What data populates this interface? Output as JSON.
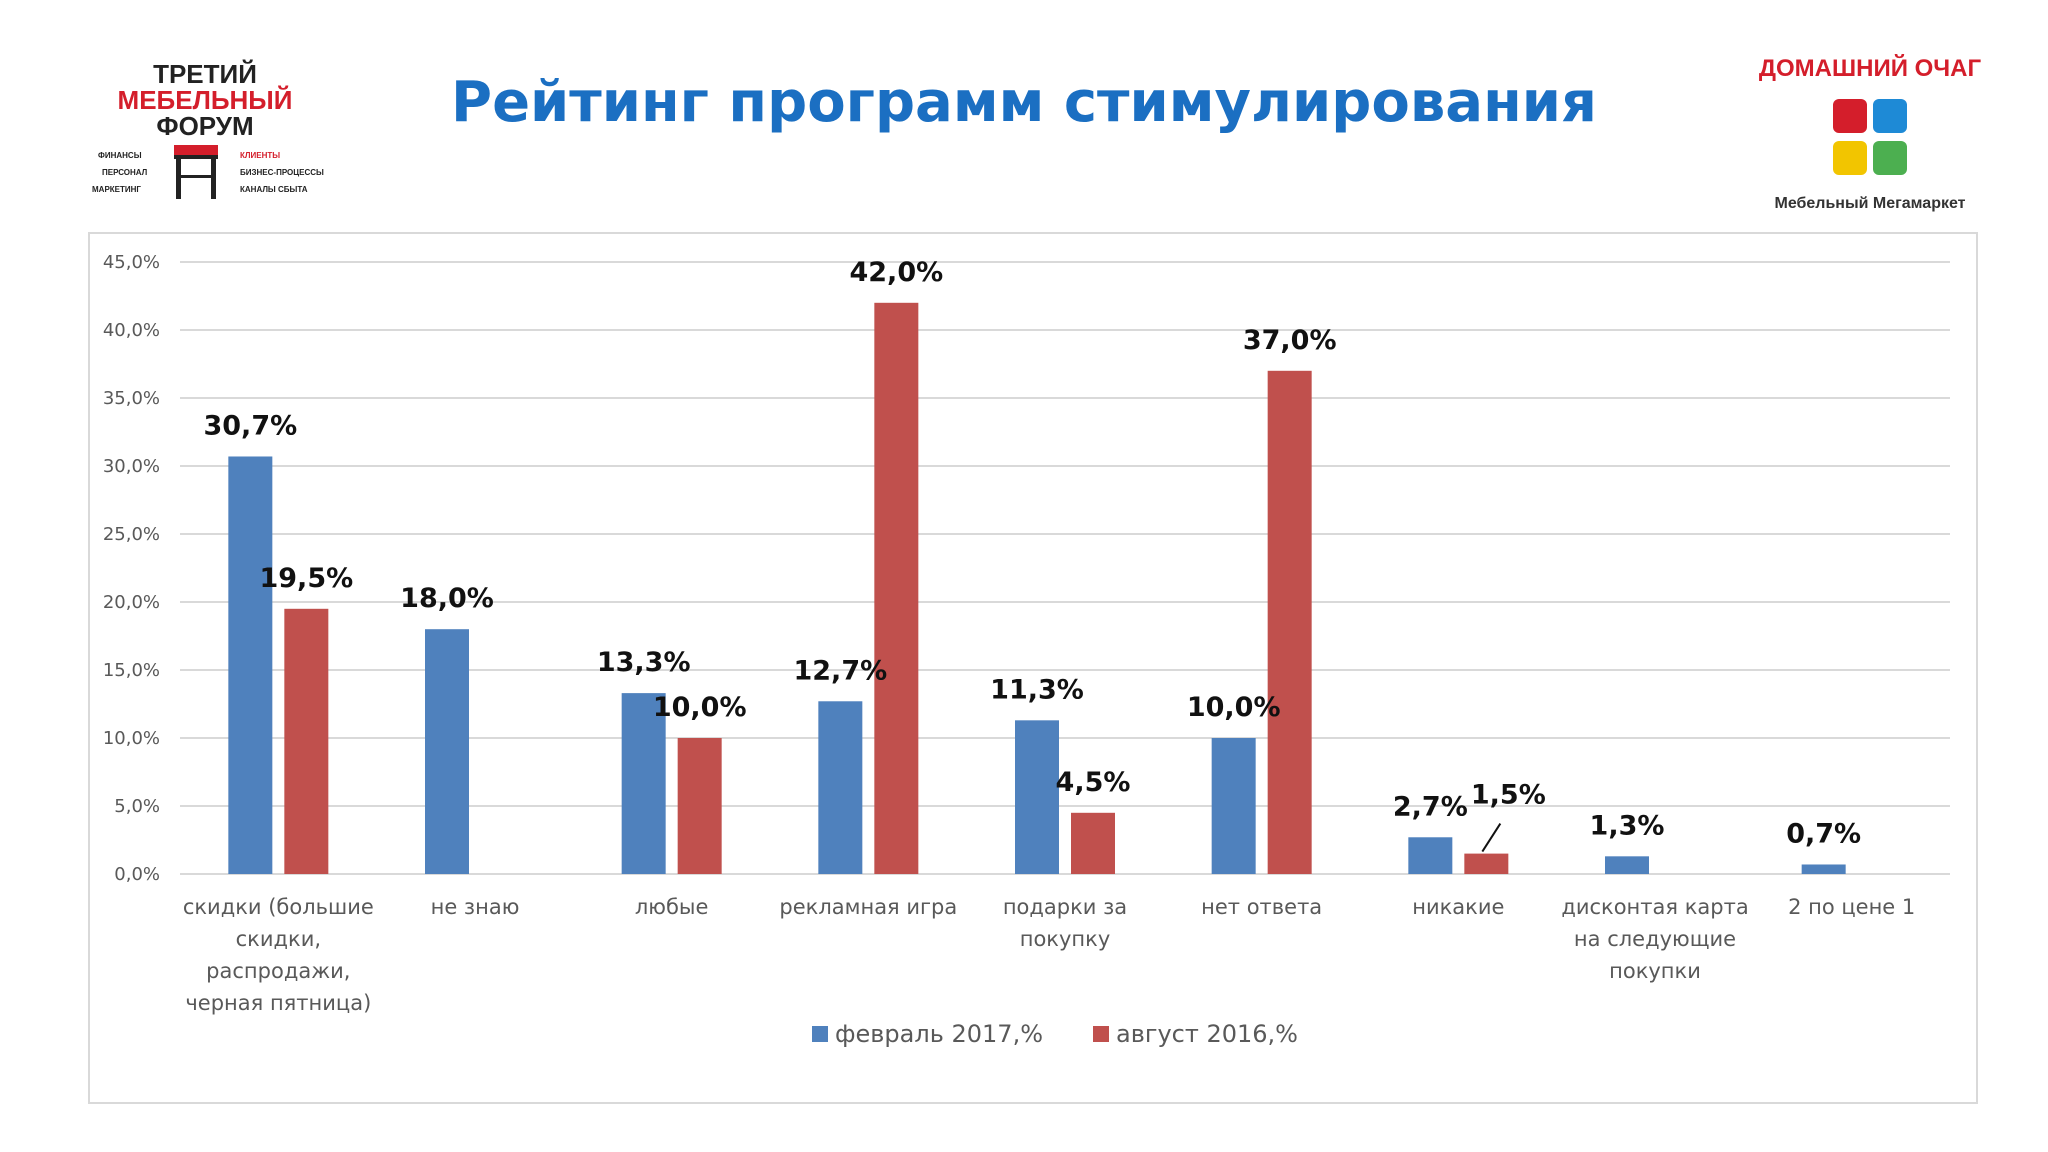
{
  "header": {
    "title": "Рейтинг программ стимулирования",
    "logo_left": {
      "line1": "ТРЕТИЙ",
      "line2": "МЕБЕЛЬНЫЙ",
      "line3": "ФОРУМ",
      "left_items": [
        "ФИНАНСЫ",
        "ПЕРСОНАЛ",
        "МАРКЕТИНГ"
      ],
      "right_items": [
        "КЛИЕНТЫ",
        "БИЗНЕС-ПРОЦЕССЫ",
        "КАНАЛЫ СБЫТА"
      ]
    },
    "logo_right": {
      "brand": "ДОМАШНИЙ ОЧАГ",
      "subtitle": "Мебельный Мегамаркет"
    }
  },
  "colors": {
    "title": "#1b6fc2",
    "series_feb": "#4f81bd",
    "series_aug": "#c0504d"
  },
  "chart_data": {
    "type": "bar",
    "categories": [
      [
        "скидки (большие",
        "скидки,",
        "распродажи,",
        "черная пятница)"
      ],
      [
        "не знаю"
      ],
      [
        "любые"
      ],
      [
        "рекламная игра"
      ],
      [
        "подарки за",
        "покупку"
      ],
      [
        "нет ответа"
      ],
      [
        "никакие"
      ],
      [
        "дисконтая карта",
        "на следующие",
        "покупки"
      ],
      [
        "2 по цене 1"
      ]
    ],
    "series": [
      {
        "name": "февраль 2017,%",
        "values": [
          30.7,
          18.0,
          13.3,
          12.7,
          11.3,
          10.0,
          2.7,
          1.3,
          0.7
        ],
        "labels": [
          "30,7%",
          "18,0%",
          "13,3%",
          "12,7%",
          "11,3%",
          "10,0%",
          "2,7%",
          "1,3%",
          "0,7%"
        ]
      },
      {
        "name": "август 2016,%",
        "values": [
          19.5,
          null,
          10.0,
          42.0,
          4.5,
          37.0,
          1.5,
          null,
          null
        ],
        "labels": [
          "19,5%",
          null,
          "10,0%",
          "42,0%",
          "4,5%",
          "37,0%",
          "1,5%",
          null,
          null
        ]
      }
    ],
    "yticks": [
      "0,0%",
      "5,0%",
      "10,0%",
      "15,0%",
      "20,0%",
      "25,0%",
      "30,0%",
      "35,0%",
      "40,0%",
      "45,0%"
    ],
    "ylim": [
      0,
      45
    ],
    "grid": true,
    "legend_position": "bottom"
  }
}
